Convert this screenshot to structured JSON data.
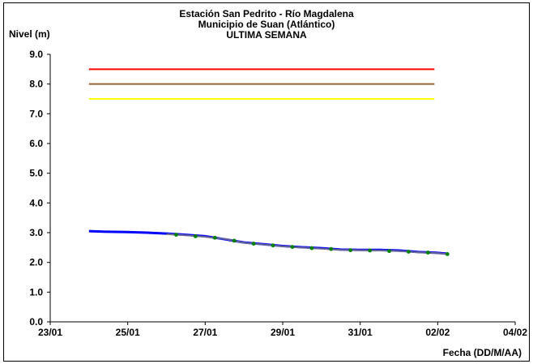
{
  "chart_data": {
    "type": "line",
    "title": [
      "Estación San Pedrito - Río Magdalena",
      "Municipio de Suan (Atlántico)",
      "ULTIMA SEMANA"
    ],
    "ylabel": "Nivel (m)",
    "xlabel": "Fecha (DD/M/AA)",
    "ylim": [
      0,
      9
    ],
    "yticks": [
      "0.0",
      "1.0",
      "2.0",
      "3.0",
      "4.0",
      "5.0",
      "6.0",
      "7.0",
      "8.0",
      "9.0"
    ],
    "xlim": [
      "2024-01-23",
      "2024-02-04"
    ],
    "xticks": [
      {
        "date": "2024-01-23",
        "label": "23/01"
      },
      {
        "date": "2024-01-25",
        "label": "25/01"
      },
      {
        "date": "2024-01-27",
        "label": "27/01"
      },
      {
        "date": "2024-01-29",
        "label": "29/01"
      },
      {
        "date": "2024-01-31",
        "label": "31/01"
      },
      {
        "date": "2024-02-02",
        "label": "02/02"
      },
      {
        "date": "2024-02-04",
        "label": "04/02"
      }
    ],
    "grid": false,
    "thresholds": [
      {
        "value": 8.5,
        "color": "#ff0000",
        "x": [
          "2024-01-24",
          "2024-02-01 22:00"
        ]
      },
      {
        "value": 8.0,
        "color": "#996633",
        "x": [
          "2024-01-24",
          "2024-02-01 22:00"
        ]
      },
      {
        "value": 7.5,
        "color": "#ffff00",
        "x": [
          "2024-01-24",
          "2024-02-01 22:00"
        ]
      }
    ],
    "series": [
      {
        "color": "#0000ff",
        "points": [
          [
            "2024-01-24 00:00",
            3.05
          ],
          [
            "2024-01-24 12:00",
            3.03
          ],
          [
            "2024-01-25 00:00",
            3.02
          ],
          [
            "2024-01-25 12:00",
            3.0
          ],
          [
            "2024-01-26 00:00",
            2.97
          ],
          [
            "2024-01-26 12:00",
            2.93
          ],
          [
            "2024-01-27 00:00",
            2.88
          ],
          [
            "2024-01-27 12:00",
            2.78
          ],
          [
            "2024-01-28 00:00",
            2.67
          ],
          [
            "2024-01-28 12:00",
            2.61
          ],
          [
            "2024-01-29 00:00",
            2.55
          ],
          [
            "2024-01-29 12:00",
            2.51
          ],
          [
            "2024-01-30 00:00",
            2.48
          ],
          [
            "2024-01-30 12:00",
            2.43
          ],
          [
            "2024-01-31 00:00",
            2.42
          ],
          [
            "2024-01-31 12:00",
            2.42
          ],
          [
            "2024-02-01 00:00",
            2.4
          ],
          [
            "2024-02-01 12:00",
            2.35
          ],
          [
            "2024-02-02 00:00",
            2.32
          ],
          [
            "2024-02-02 06:00",
            2.29
          ]
        ]
      },
      {
        "color": "#808080",
        "points": [
          [
            "2024-01-26 00:00",
            2.95
          ],
          [
            "2024-01-26 12:00",
            2.91
          ],
          [
            "2024-01-27 00:00",
            2.86
          ],
          [
            "2024-01-27 12:00",
            2.79
          ],
          [
            "2024-01-28 00:00",
            2.66
          ],
          [
            "2024-01-28 12:00",
            2.6
          ],
          [
            "2024-01-29 00:00",
            2.54
          ],
          [
            "2024-01-29 12:00",
            2.5
          ],
          [
            "2024-01-30 00:00",
            2.46
          ],
          [
            "2024-01-30 12:00",
            2.42
          ],
          [
            "2024-01-31 00:00",
            2.41
          ],
          [
            "2024-01-31 12:00",
            2.4
          ],
          [
            "2024-02-01 00:00",
            2.38
          ],
          [
            "2024-02-01 12:00",
            2.34
          ],
          [
            "2024-02-02 00:00",
            2.31
          ],
          [
            "2024-02-02 06:00",
            2.28
          ]
        ]
      },
      {
        "color": "#008000",
        "points": [
          [
            "2024-01-26 06:00",
            2.93
          ],
          [
            "2024-01-26 18:00",
            2.88
          ],
          [
            "2024-01-27 06:00",
            2.83
          ],
          [
            "2024-01-27 18:00",
            2.73
          ],
          [
            "2024-01-28 06:00",
            2.63
          ],
          [
            "2024-01-28 18:00",
            2.57
          ],
          [
            "2024-01-29 06:00",
            2.52
          ],
          [
            "2024-01-29 18:00",
            2.48
          ],
          [
            "2024-01-30 06:00",
            2.45
          ],
          [
            "2024-01-30 18:00",
            2.41
          ],
          [
            "2024-01-31 06:00",
            2.4
          ],
          [
            "2024-01-31 18:00",
            2.38
          ],
          [
            "2024-02-01 06:00",
            2.36
          ],
          [
            "2024-02-01 18:00",
            2.33
          ],
          [
            "2024-02-02 06:00",
            2.28
          ]
        ]
      }
    ]
  }
}
